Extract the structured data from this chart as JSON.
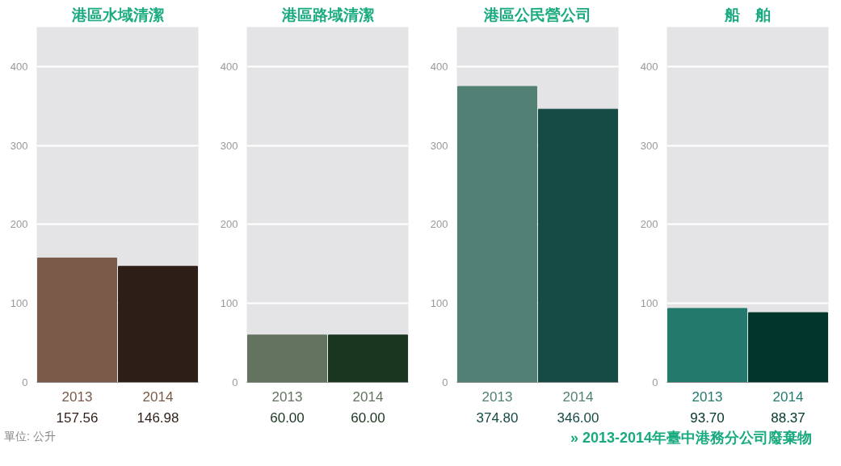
{
  "chart_data": [
    {
      "type": "bar",
      "title": "港區水域清潔",
      "categories": [
        "2013",
        "2014"
      ],
      "values": [
        157.56,
        146.98
      ],
      "colors": [
        "#7a5a48",
        "#2e1e18"
      ],
      "value_labels": [
        "157.56",
        "146.98"
      ],
      "ylim": [
        0,
        450
      ],
      "yticks": [
        0,
        100,
        200,
        300,
        400
      ],
      "grid": "y",
      "annotations": [
        "單位: 公升"
      ]
    },
    {
      "type": "bar",
      "title": "港區路域清潔",
      "categories": [
        "2013",
        "2014"
      ],
      "values": [
        60.0,
        60.0
      ],
      "colors": [
        "#637360",
        "#1a3520"
      ],
      "value_labels": [
        "60.00",
        "60.00"
      ],
      "ylim": [
        0,
        450
      ],
      "yticks": [
        0,
        100,
        200,
        300,
        400
      ],
      "grid": "y"
    },
    {
      "type": "bar",
      "title": "港區公民營公司",
      "categories": [
        "2013",
        "2014"
      ],
      "values": [
        374.8,
        346.0
      ],
      "colors": [
        "#528075",
        "#154a45"
      ],
      "value_labels": [
        "374.80",
        "346.00"
      ],
      "ylim": [
        0,
        450
      ],
      "yticks": [
        0,
        100,
        200,
        300,
        400
      ],
      "grid": "y"
    },
    {
      "type": "bar",
      "title": "船　舶",
      "categories": [
        "2013",
        "2014"
      ],
      "values": [
        93.7,
        88.37
      ],
      "colors": [
        "#237a6c",
        "#02352b"
      ],
      "value_labels": [
        "93.70",
        "88.37"
      ],
      "ylim": [
        0,
        450
      ],
      "yticks": [
        0,
        100,
        200,
        300,
        400
      ],
      "grid": "y",
      "annotations": [
        "» 2013-2014年臺中港務分公司廢棄物"
      ]
    }
  ]
}
